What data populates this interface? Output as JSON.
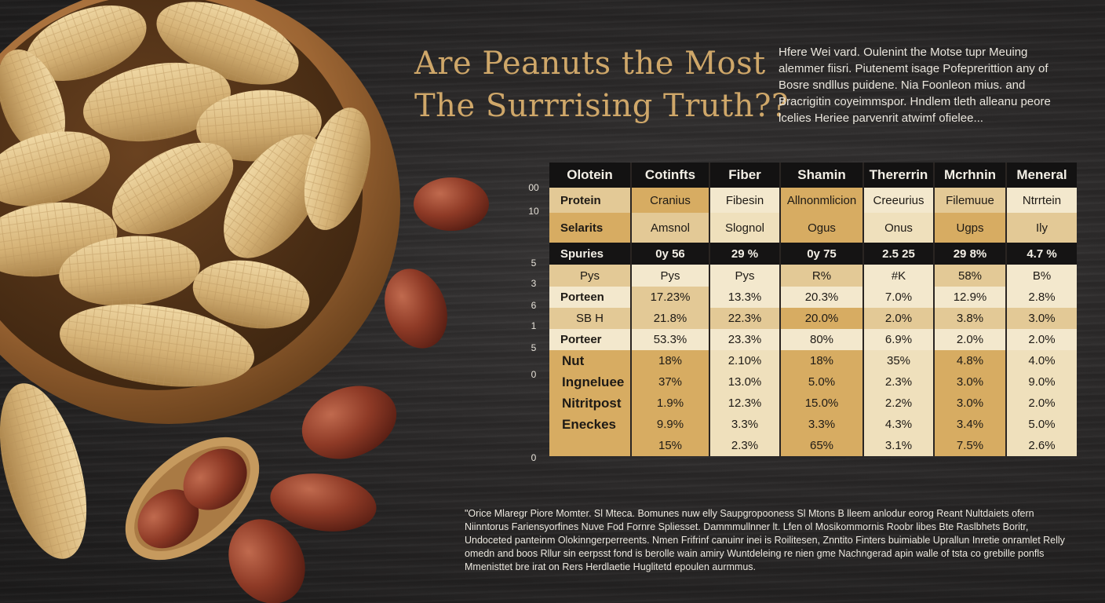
{
  "title": {
    "line1": "Are Peanuts the Most",
    "line2": "The Surrrising Truth??"
  },
  "intro": "Hfere Wei vard. Oulenint the Motse tupr Meuing alemmer fiisri. Piutenemt isage Pofeprerittion any of Bosre sndllus puidene. Nia Foonleon mius. and Bracrigitin coyeimmspor. Hndlem tleth alleanu peore lcelies Heriee parvenrit atwimf ofielee...",
  "scale_labels": [
    "00",
    "10",
    "5",
    "3",
    "6",
    "1",
    "5",
    "0",
    "0"
  ],
  "table": {
    "headers": [
      "Olotein",
      "Cotinfts",
      "Fiber",
      "Shamin",
      "Thererrin",
      "Mcrhnin",
      "Meneral"
    ],
    "rows": [
      [
        "Protein",
        "Cranius",
        "Fibesin",
        "Allnonmlicion",
        "Creeurius",
        "Filemuue",
        "Ntrrtein"
      ],
      [
        "Selarits",
        "Amsnol",
        "Slognol",
        "Ogus",
        "Onus",
        "Ugps",
        "Ily"
      ],
      [
        "Spuries",
        "0y 56",
        "29 %",
        "0y 75",
        "2.5 25",
        "29 8%",
        "4.7 %"
      ],
      [
        "Pys",
        "Pys",
        "Pys",
        "R%",
        "#K",
        "58%",
        "B%"
      ],
      [
        "Porteen",
        "17.23%",
        "13.3%",
        "20.3%",
        "7.0%",
        "12.9%",
        "2.8%"
      ],
      [
        "SB H",
        "21.8%",
        "22.3%",
        "20.0%",
        "2.0%",
        "3.8%",
        "3.0%"
      ],
      [
        "Porteer",
        "53.3%",
        "23.3%",
        "80%",
        "6.9%",
        "2.0%",
        "2.0%"
      ]
    ],
    "lower_labels": [
      "Nut",
      "Ingneluee",
      "Nitritpost",
      "Eneckes",
      ""
    ],
    "lower_rows": [
      [
        "18%",
        "2.10%",
        "18%",
        "35%",
        "4.8%",
        "4.0%"
      ],
      [
        "37%",
        "13.0%",
        "5.0%",
        "2.3%",
        "3.0%",
        "9.0%"
      ],
      [
        "1.9%",
        "12.3%",
        "15.0%",
        "2.2%",
        "3.0%",
        "2.0%"
      ],
      [
        "9.9%",
        "3.3%",
        "3.3%",
        "4.3%",
        "3.4%",
        "5.0%"
      ],
      [
        "15%",
        "2.3%",
        "65%",
        "3.1%",
        "7.5%",
        "2.6%"
      ]
    ]
  },
  "footnote": "\"Orice Mlaregr Piore Momter. Sl Mteca. Bomunes nuw elly Saupgropooness Sl Mtons B lleem anlodur eorog Reant Nultdaiets ofern Niinntorus Fariensyorfines Nuve Fod Fornre Spliesset. Dammmullnner lt. Lfen ol Mosikommornis Roobr libes Bte Raslbhets Boritr, Undoceted panteinm Olokinngerperreents. Nmen Frifrinf canuinr inei is Roilitesen, Znntito Finters buimiable Uprallun Inretie onramlet Relly omedn and boos Rllur sin eerpsst fond is berolle wain amiry Wuntdeleing re nien gme Nachngerad apin walle of tsta co grebille ponfls Mmenisttet bre irat on Rers Herdlaetie Huglitetd epoulen aurmmus."
}
